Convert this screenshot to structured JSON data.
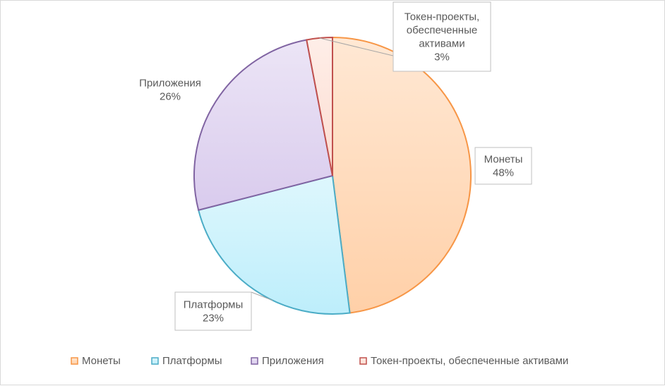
{
  "chart_data": {
    "type": "pie",
    "title": "",
    "series": [
      {
        "name": "Монеты",
        "value": 48,
        "label": "48%",
        "color_fill": "#ffd0a8",
        "color_stroke": "#f79646"
      },
      {
        "name": "Платформы",
        "value": 23,
        "label": "23%",
        "color_fill": "#bdeefb",
        "color_stroke": "#4bacc6"
      },
      {
        "name": "Приложения",
        "value": 26,
        "label": "26%",
        "color_fill": "#d9cbed",
        "color_stroke": "#8064a2"
      },
      {
        "name": "Токен-проекты, обеспеченные активами",
        "value": 3,
        "label": "3%",
        "color_fill": "#fcdcd0",
        "color_stroke": "#c0504d"
      }
    ],
    "legend_position": "bottom",
    "data_labels": [
      {
        "lines": [
          "Монеты",
          "48%"
        ]
      },
      {
        "lines": [
          "Платформы",
          "23%"
        ]
      },
      {
        "lines": [
          "Приложения",
          "26%"
        ]
      },
      {
        "lines": [
          "Токен-проекты,",
          "обеспеченные",
          "активами",
          "3%"
        ]
      }
    ]
  }
}
